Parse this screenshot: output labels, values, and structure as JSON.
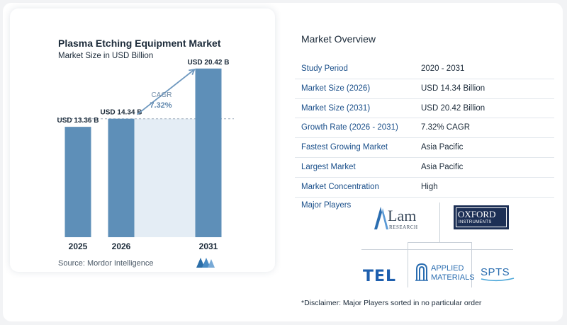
{
  "chart_title": "Plasma Etching Equipment Market",
  "chart_subtitle": "Market Size in USD Billion",
  "chart_data": {
    "type": "bar",
    "title": "Plasma Etching Equipment Market",
    "subtitle": "Market Size in USD Billion",
    "categories": [
      "2025",
      "2026",
      "2031"
    ],
    "values": [
      13.36,
      14.34,
      20.42
    ],
    "value_labels": [
      "USD 13.36 B",
      "USD 14.34 B",
      "USD 20.42 B"
    ],
    "ylim": [
      0,
      21
    ],
    "bar_color": "#5e8fb8",
    "baseline_value": 14.34,
    "annotation": {
      "label": "CAGR",
      "value": "7.32%"
    }
  },
  "source": "Source:  Mordor Intelligence",
  "overview": {
    "title": "Market Overview",
    "rows": [
      {
        "label": "Study Period",
        "value": "2020 - 2031"
      },
      {
        "label": "Market Size (2026)",
        "value": "USD 14.34 Billion"
      },
      {
        "label": "Market Size (2031)",
        "value": "USD 20.42 Billion"
      },
      {
        "label": "Growth Rate (2026 - 2031)",
        "value": "7.32% CAGR"
      },
      {
        "label": "Fastest Growing Market",
        "value": "Asia Pacific"
      },
      {
        "label": "Largest Market",
        "value": "Asia Pacific"
      },
      {
        "label": "Market Concentration",
        "value": "High"
      }
    ]
  },
  "players": {
    "label": "Major Players",
    "lam": {
      "name": "Lam",
      "sub": "RESEARCH"
    },
    "oxford": {
      "line1": "OXFORD",
      "line2": "INSTRUMENTS"
    },
    "tel": "TEL",
    "applied": {
      "line1": "APPLIED",
      "line2": "MATERIALS"
    },
    "spts": "SPTS"
  },
  "disclaimer": "*Disclaimer: Major Players sorted in no particular order",
  "colors": {
    "accent": "#1a4f8a",
    "bar": "#5e8fb8",
    "projection_fill": "#e4edf5"
  }
}
